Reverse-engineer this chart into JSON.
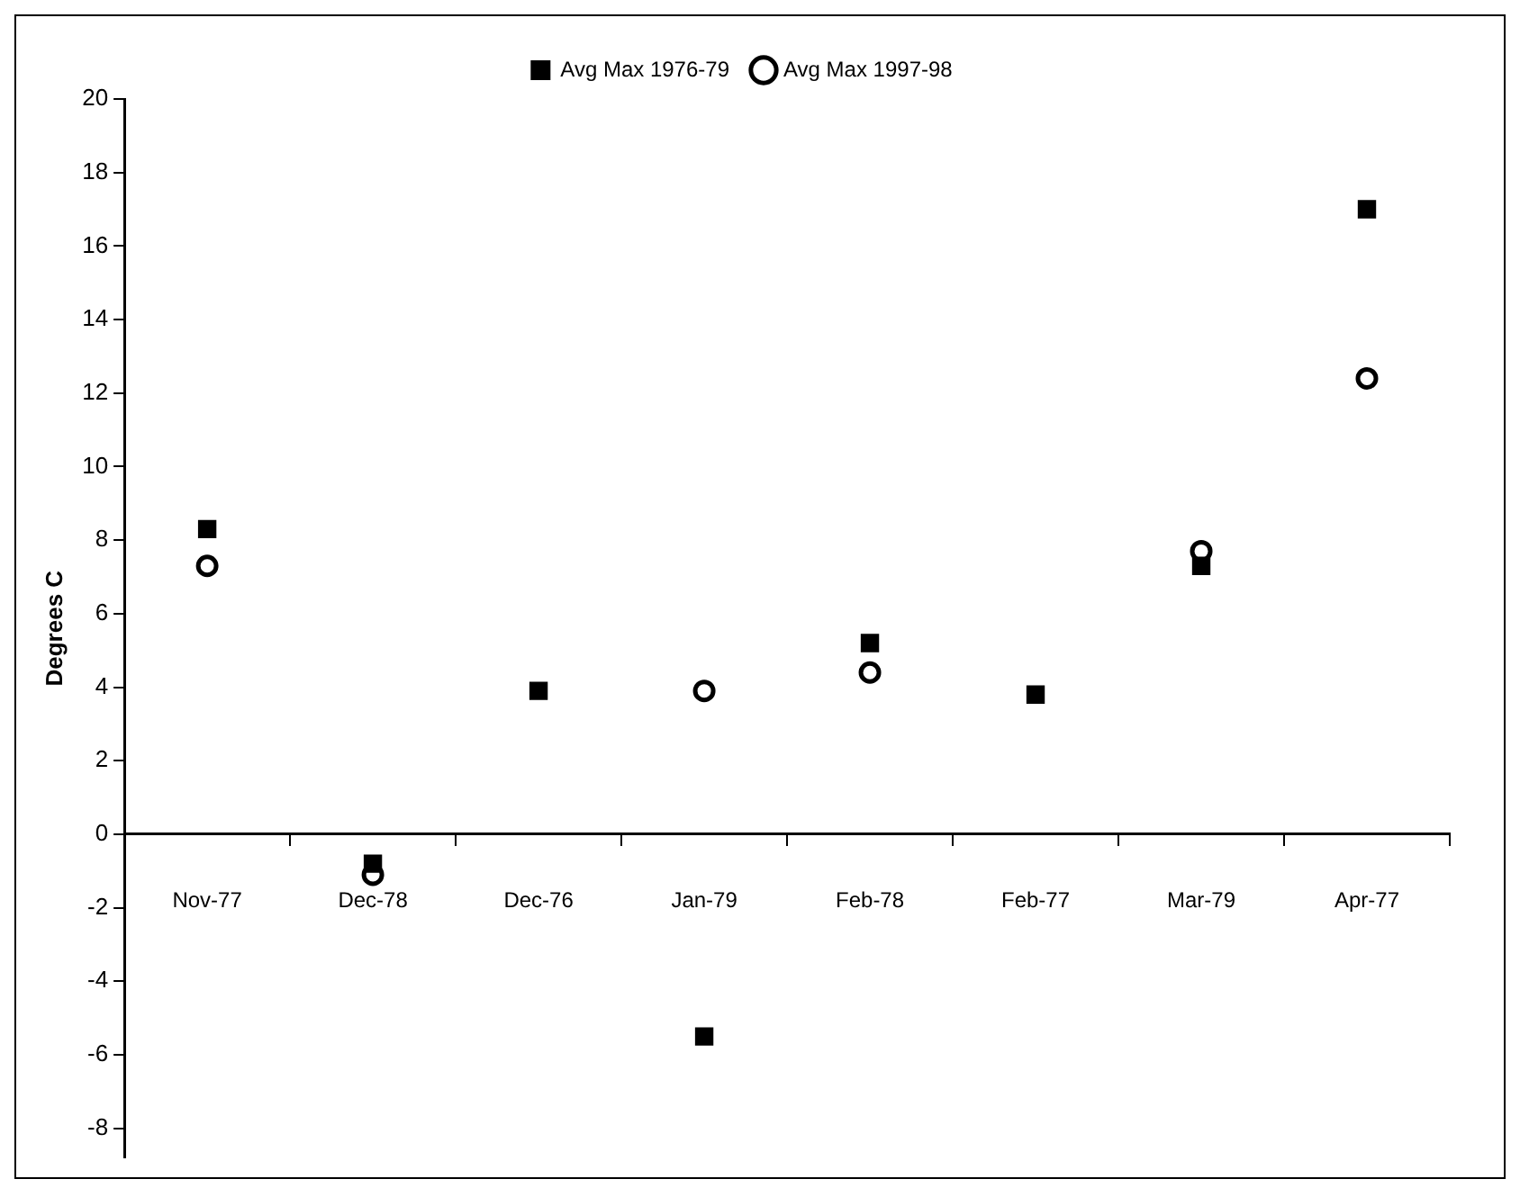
{
  "chart_data": {
    "type": "scatter",
    "ylabel": "Degrees C",
    "categories": [
      "Nov-77",
      "Dec-78",
      "Dec-76",
      "Jan-79",
      "Feb-78",
      "Feb-77",
      "Mar-79",
      "Apr-77"
    ],
    "series": [
      {
        "name": "Avg Max 1976-79",
        "color": "#000000",
        "marker": "square",
        "values": [
          8.3,
          -0.8,
          3.9,
          -5.5,
          5.2,
          3.8,
          7.3,
          17.0
        ]
      },
      {
        "name": "Avg Max 1997-98",
        "color": "#000000",
        "marker": "circle",
        "values": [
          7.3,
          -1.1,
          null,
          3.9,
          4.4,
          null,
          7.7,
          12.4
        ]
      }
    ],
    "ylim": [
      -8.8,
      20
    ],
    "yticks": [
      -8,
      -6,
      -4,
      -2,
      0,
      2,
      4,
      6,
      8,
      10,
      12,
      14,
      16,
      18,
      20
    ],
    "grid": false,
    "legend": "top"
  }
}
